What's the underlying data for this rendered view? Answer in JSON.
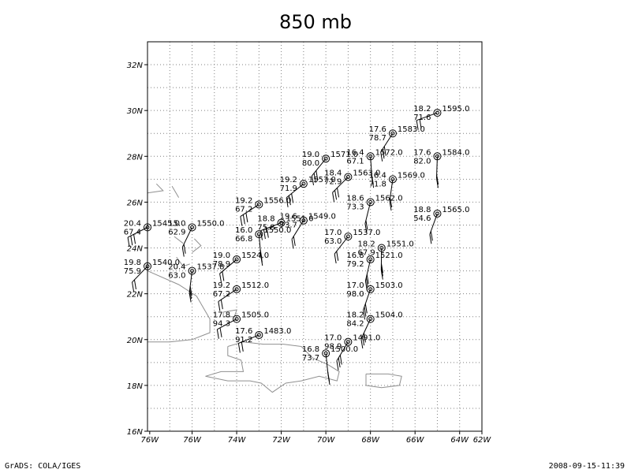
{
  "title": "850 mb",
  "footer": {
    "left": "GrADS: COLA/IGES",
    "right": "2008-09-15-11:39"
  },
  "map": {
    "lon_range": [
      -77,
      -62
    ],
    "lat_range": [
      16,
      33
    ],
    "x_tick_labels": [
      "76W",
      "76W",
      "74W",
      "72W",
      "70W",
      "68W",
      "66W",
      "64W",
      "62W"
    ],
    "y_tick_labels": [
      "16N",
      "18N",
      "20N",
      "22N",
      "24N",
      "26N",
      "28N",
      "30N",
      "32N"
    ],
    "grid": "dotted",
    "coastline_color": "#909090",
    "station_color": "#000000"
  },
  "stations": [
    {
      "lon": -64.0,
      "lat": 29.9,
      "t": "18.2",
      "rh": "71.6",
      "z": "1595.0"
    },
    {
      "lon": -66.0,
      "lat": 29.0,
      "t": "17.6",
      "rh": "78.7",
      "z": "1583.0"
    },
    {
      "lon": -67.0,
      "lat": 28.0,
      "t": "16.4",
      "rh": "67.1",
      "z": "1572.0"
    },
    {
      "lon": -69.0,
      "lat": 27.9,
      "t": "19.0",
      "rh": "80.0",
      "z": "1571.0"
    },
    {
      "lon": -64.0,
      "lat": 28.0,
      "t": "17.6",
      "rh": "82.0",
      "z": "1584.0"
    },
    {
      "lon": -68.0,
      "lat": 27.1,
      "t": "18.4",
      "rh": "72.9",
      "z": "1563.0"
    },
    {
      "lon": -66.0,
      "lat": 27.0,
      "t": "18.4",
      "rh": "71.8",
      "z": "1569.0"
    },
    {
      "lon": -70.0,
      "lat": 26.8,
      "t": "19.2",
      "rh": "71.9",
      "z": "1557.0"
    },
    {
      "lon": -67.0,
      "lat": 26.0,
      "t": "18.6",
      "rh": "73.3",
      "z": "1562.0"
    },
    {
      "lon": -72.0,
      "lat": 25.9,
      "t": "19.2",
      "rh": "67.2",
      "z": "1556.0"
    },
    {
      "lon": -64.0,
      "lat": 25.5,
      "t": "18.8",
      "rh": "54.6",
      "z": "1565.0"
    },
    {
      "lon": -77.0,
      "lat": 24.9,
      "t": "20.4",
      "rh": "67.4",
      "z": "1545.0"
    },
    {
      "lon": -75.0,
      "lat": 24.9,
      "t": "15.0",
      "rh": "62.9",
      "z": "1550.0"
    },
    {
      "lon": -71.0,
      "lat": 25.1,
      "t": "18.8",
      "rh": "75.8",
      "z": "1551.0"
    },
    {
      "lon": -70.0,
      "lat": 25.2,
      "t": "19.6",
      "rh": "73.7",
      "z": "1549.0"
    },
    {
      "lon": -72.0,
      "lat": 24.6,
      "t": "16.0",
      "rh": "66.8",
      "z": "1550.0"
    },
    {
      "lon": -68.0,
      "lat": 24.5,
      "t": "17.0",
      "rh": "63.0",
      "z": "1537.0"
    },
    {
      "lon": -66.5,
      "lat": 24.0,
      "t": "18.2",
      "rh": "67.9",
      "z": "1551.0"
    },
    {
      "lon": -77.0,
      "lat": 23.2,
      "t": "19.8",
      "rh": "75.9",
      "z": "1540.0"
    },
    {
      "lon": -75.0,
      "lat": 23.0,
      "t": "20.4",
      "rh": "63.0",
      "z": "1537.8"
    },
    {
      "lon": -73.0,
      "lat": 23.5,
      "t": "19.0",
      "rh": "78.9",
      "z": "1524.0"
    },
    {
      "lon": -67.0,
      "lat": 23.5,
      "t": "16.8",
      "rh": "79.2",
      "z": "1521.0"
    },
    {
      "lon": -73.0,
      "lat": 22.2,
      "t": "19.2",
      "rh": "67.2",
      "z": "1512.0"
    },
    {
      "lon": -67.0,
      "lat": 22.2,
      "t": "17.0",
      "rh": "98.0",
      "z": "1503.0"
    },
    {
      "lon": -73.0,
      "lat": 20.9,
      "t": "17.8",
      "rh": "94.3",
      "z": "1505.0"
    },
    {
      "lon": -67.0,
      "lat": 20.9,
      "t": "18.2",
      "rh": "84.2",
      "z": "1504.0"
    },
    {
      "lon": -72.0,
      "lat": 20.2,
      "t": "17.6",
      "rh": "91.2",
      "z": "1483.0"
    },
    {
      "lon": -68.0,
      "lat": 19.9,
      "t": "17.0",
      "rh": "98.9",
      "z": "1491.0"
    },
    {
      "lon": -69.0,
      "lat": 19.4,
      "t": "16.8",
      "rh": "73.7",
      "z": "1500.0"
    }
  ]
}
